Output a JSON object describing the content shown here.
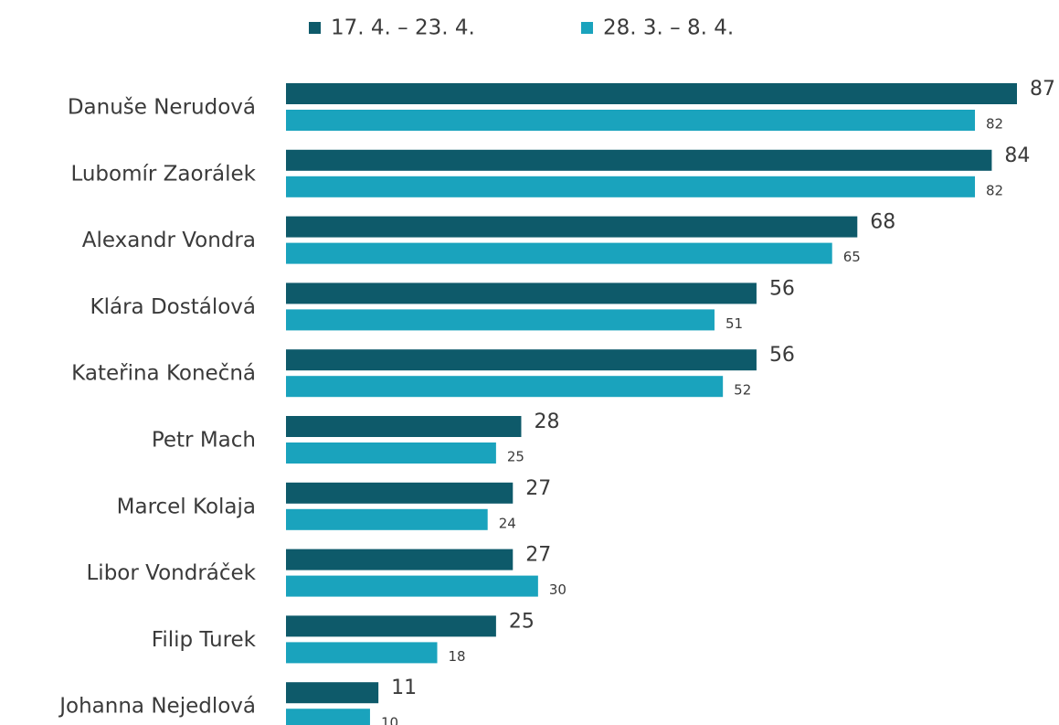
{
  "chart_data": {
    "type": "bar",
    "orientation": "horizontal",
    "categories": [
      "Danuše Nerudová",
      "Lubomír Zaorálek",
      "Alexandr Vondra",
      "Klára Dostálová",
      "Kateřina Konečná",
      "Petr Mach",
      "Marcel Kolaja",
      "Libor Vondráček",
      "Filip Turek",
      "Johanna Nejedlová"
    ],
    "series": [
      {
        "name": "17. 4. – 23. 4.",
        "color": "#0e5a6a",
        "values": [
          87,
          84,
          68,
          56,
          56,
          28,
          27,
          27,
          25,
          11
        ]
      },
      {
        "name": "28. 3. – 8. 4.",
        "color": "#1aa3bd",
        "values": [
          82,
          82,
          65,
          51,
          52,
          25,
          24,
          30,
          18,
          10
        ]
      }
    ],
    "legend": "top"
  }
}
